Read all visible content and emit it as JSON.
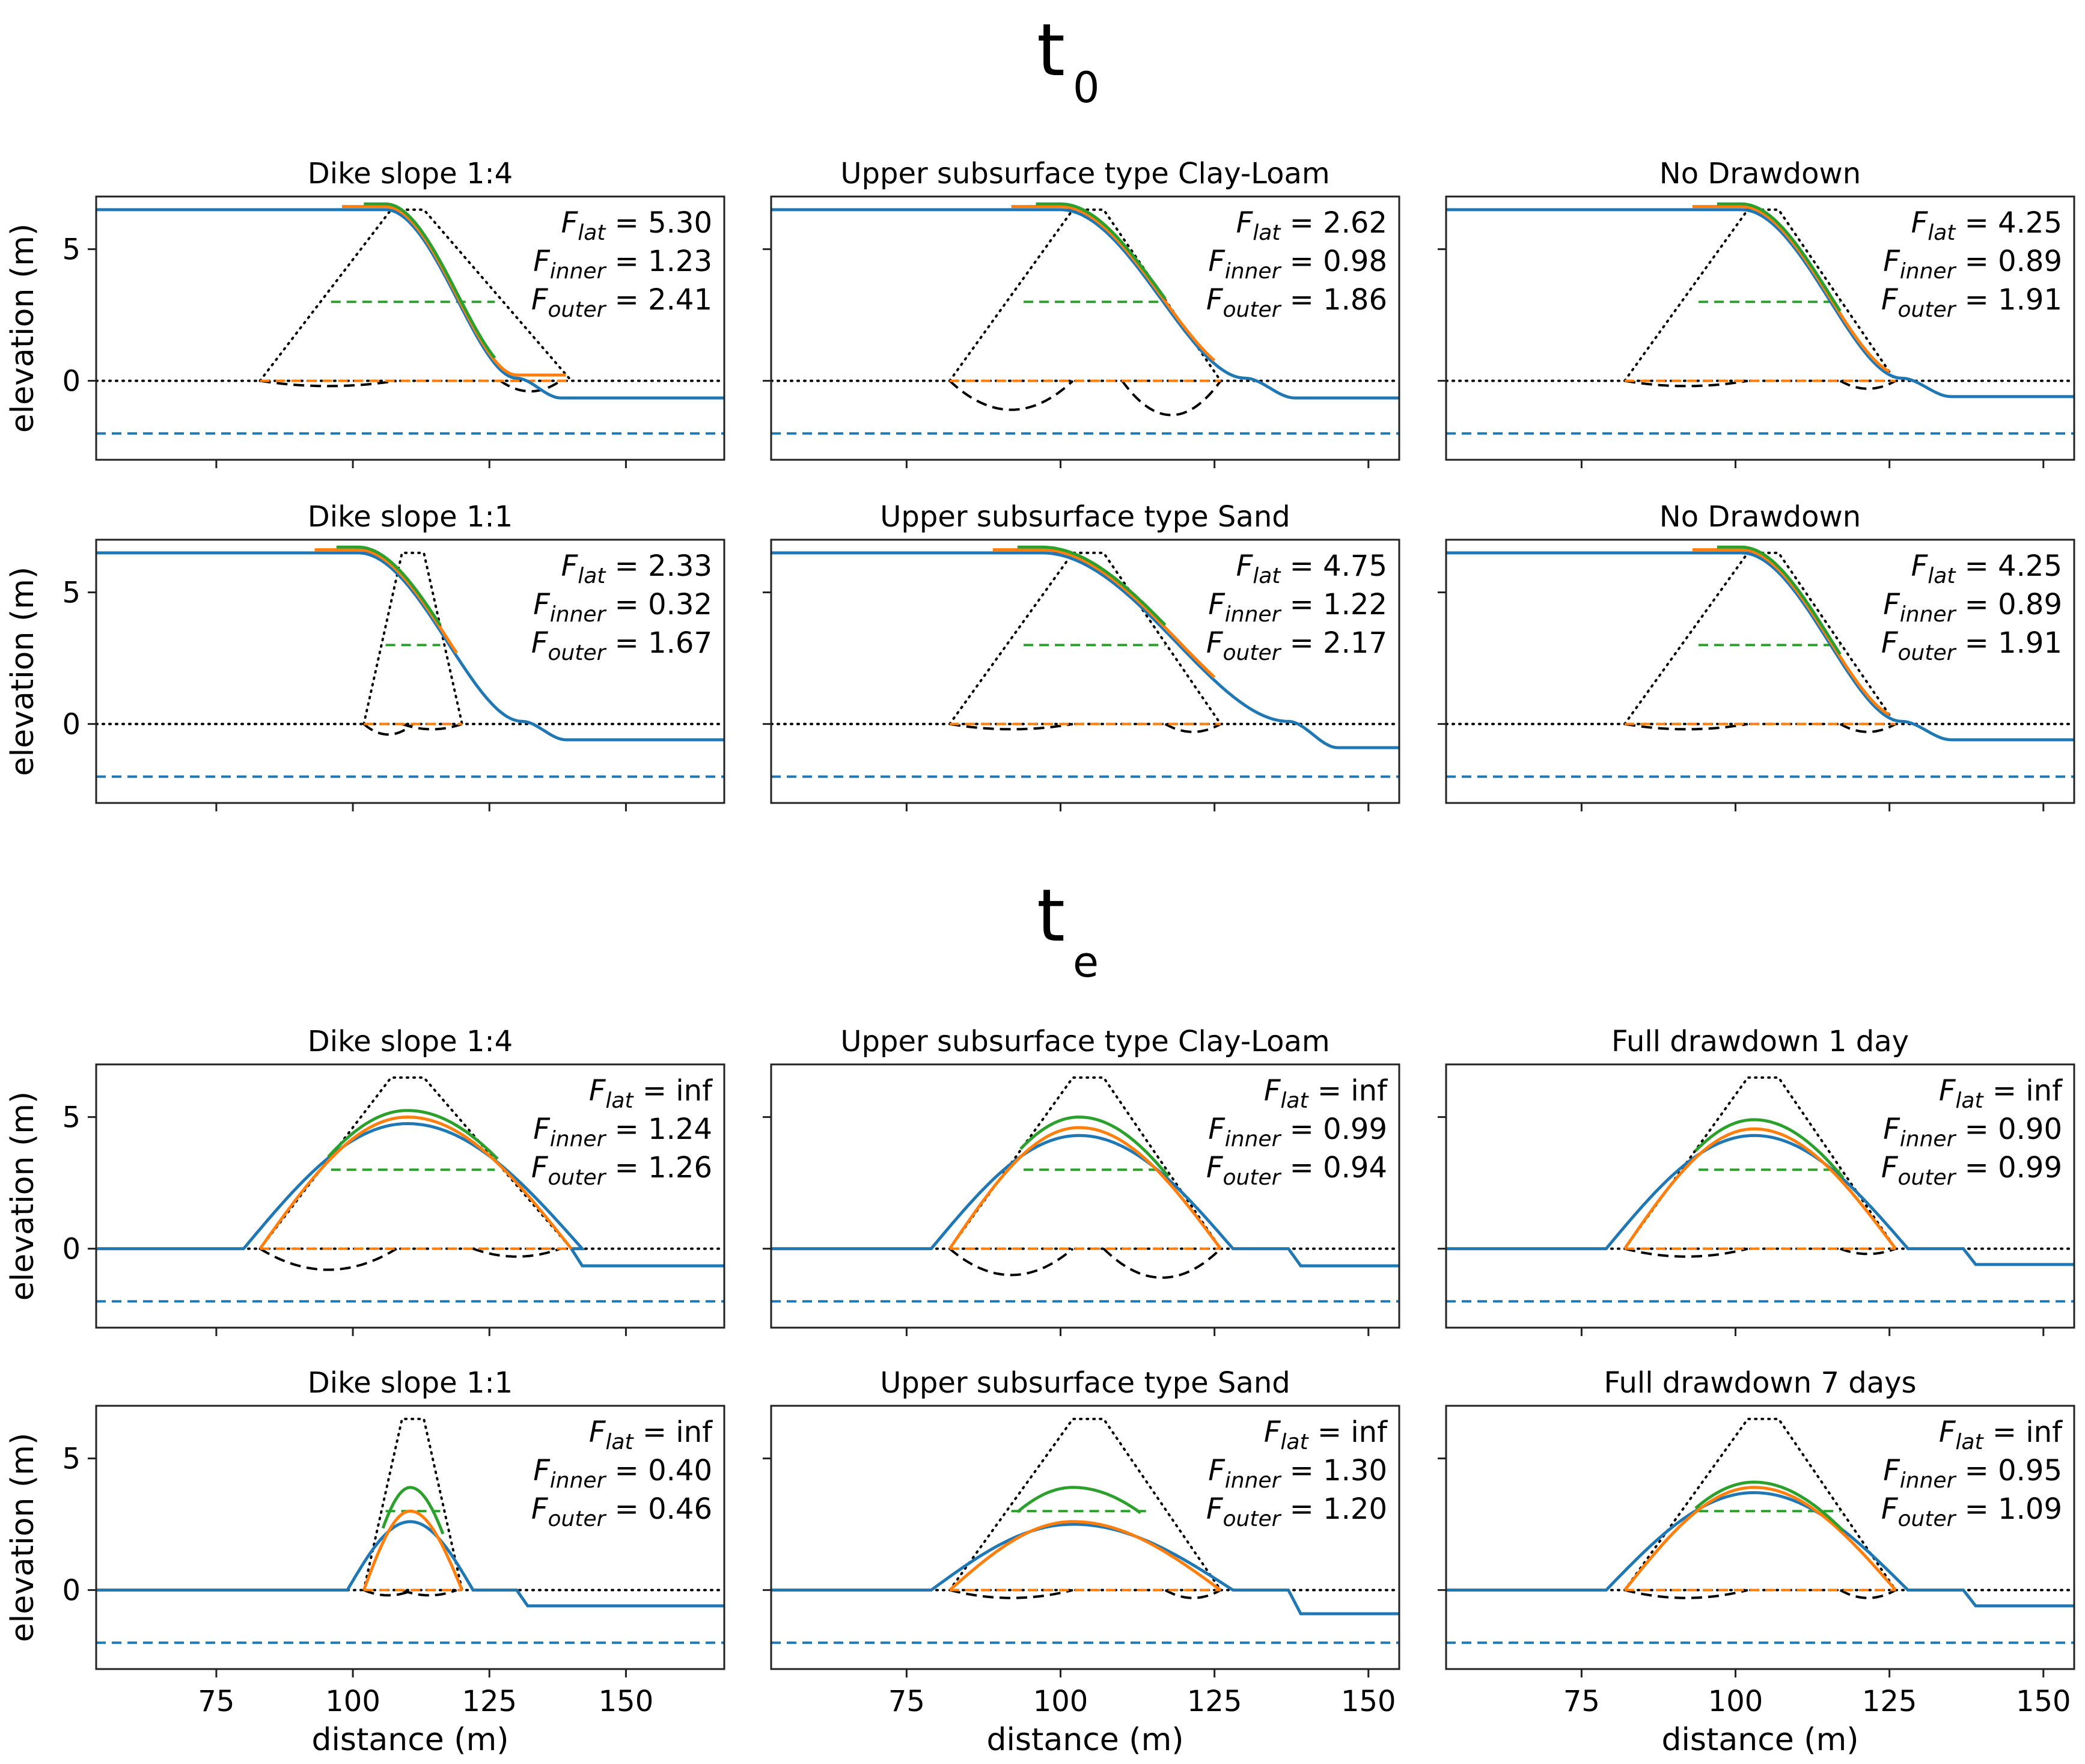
{
  "figure": {
    "section_titles": [
      {
        "main": "t",
        "sub": "0"
      },
      {
        "main": "t",
        "sub": "e"
      }
    ],
    "xlabel": "distance (m)",
    "ylabel": "elevation (m)",
    "colors": {
      "profile": "#1f77b4",
      "orange": "#ff7f0e",
      "green": "#2ca02c",
      "blue_dashed": "#0000ff",
      "black": "#000000"
    }
  },
  "chart_data": [
    {
      "type": "line",
      "section": "t0",
      "title": "Dike slope 1:4",
      "xlim": [
        53,
        168
      ],
      "ylim": [
        -3,
        7
      ],
      "xticks": [
        75,
        100,
        125,
        150
      ],
      "yticks": [
        0,
        5
      ],
      "dike": {
        "x_start": 83,
        "x_end": 140,
        "crest_left": 107,
        "crest_right": 113,
        "height": 6.5
      },
      "circles": {
        "inner": [
          83,
          108,
          -0.2
        ],
        "outer": [
          127,
          138,
          -0.4
        ]
      },
      "green_dash": [
        96,
        126,
        3
      ],
      "orange_dash": [
        83,
        140
      ],
      "plateau_left": 6.5,
      "plateau_end": 106,
      "drop_end": 130,
      "tail_level": -0.65,
      "toe_dash": -2,
      "stats": {
        "F_lat": "5.30",
        "F_inner": "1.23",
        "F_outer": "2.41"
      }
    },
    {
      "type": "line",
      "section": "t0",
      "title": "Upper subsurface type Clay-Loam",
      "xlim": [
        53,
        155
      ],
      "ylim": [
        -3,
        7
      ],
      "xticks": [
        75,
        100,
        125,
        150
      ],
      "yticks": [
        0,
        5
      ],
      "dike": {
        "x_start": 82,
        "x_end": 126,
        "crest_left": 102,
        "crest_right": 107,
        "height": 6.5
      },
      "circles": {
        "inner": [
          82,
          102,
          -1.1
        ],
        "outer": [
          110,
          126,
          -1.3
        ]
      },
      "green_dash": [
        94,
        117,
        3
      ],
      "orange_dash": [
        82,
        126
      ],
      "plateau_left": 6.5,
      "plateau_end": 100,
      "drop_end": 130,
      "tail_level": -0.65,
      "toe_dash": -2,
      "stats": {
        "F_lat": "2.62",
        "F_inner": "0.98",
        "F_outer": "1.86"
      }
    },
    {
      "type": "line",
      "section": "t0",
      "title": "No Drawdown",
      "xlim": [
        53,
        155
      ],
      "ylim": [
        -3,
        7
      ],
      "xticks": [
        75,
        100,
        125,
        150
      ],
      "yticks": [
        0,
        5
      ],
      "dike": {
        "x_start": 82,
        "x_end": 126,
        "crest_left": 102,
        "crest_right": 107,
        "height": 6.5
      },
      "circles": {
        "inner": [
          82,
          102,
          -0.2
        ],
        "outer": [
          117,
          126,
          -0.3
        ]
      },
      "green_dash": [
        94,
        117,
        3
      ],
      "orange_dash": [
        82,
        126
      ],
      "plateau_left": 6.5,
      "plateau_end": 101,
      "drop_end": 127,
      "tail_level": -0.6,
      "toe_dash": -2,
      "stats": {
        "F_lat": "4.25",
        "F_inner": "0.89",
        "F_outer": "1.91"
      }
    },
    {
      "type": "line",
      "section": "t0",
      "title": "Dike slope 1:1",
      "xlim": [
        53,
        168
      ],
      "ylim": [
        -3,
        7
      ],
      "xticks": [
        75,
        100,
        125,
        150
      ],
      "yticks": [
        0,
        5
      ],
      "dike": {
        "x_start": 102,
        "x_end": 120,
        "crest_left": 109,
        "crest_right": 113,
        "height": 6.5
      },
      "circles": {
        "inner": [
          102,
          111,
          -0.4
        ],
        "outer": [
          109,
          120,
          -0.2
        ]
      },
      "green_dash": [
        106,
        116,
        3
      ],
      "orange_dash": [
        102,
        120
      ],
      "plateau_left": 6.5,
      "plateau_end": 101,
      "drop_end": 131,
      "tail_level": -0.6,
      "toe_dash": -2,
      "stats": {
        "F_lat": "2.33",
        "F_inner": "0.32",
        "F_outer": "1.67"
      }
    },
    {
      "type": "line",
      "section": "t0",
      "title": "Upper subsurface type Sand",
      "xlim": [
        53,
        155
      ],
      "ylim": [
        -3,
        7
      ],
      "xticks": [
        75,
        100,
        125,
        150
      ],
      "yticks": [
        0,
        5
      ],
      "dike": {
        "x_start": 82,
        "x_end": 126,
        "crest_left": 102,
        "crest_right": 107,
        "height": 6.5
      },
      "circles": {
        "inner": [
          82,
          102,
          -0.2
        ],
        "outer": [
          117,
          126,
          -0.3
        ]
      },
      "green_dash": [
        94,
        117,
        3
      ],
      "orange_dash": [
        82,
        126
      ],
      "plateau_left": 6.5,
      "plateau_end": 97,
      "drop_end": 137,
      "tail_level": -0.9,
      "toe_dash": -2,
      "stats": {
        "F_lat": "4.75",
        "F_inner": "1.22",
        "F_outer": "2.17"
      }
    },
    {
      "type": "line",
      "section": "t0",
      "title": "No Drawdown",
      "xlim": [
        53,
        155
      ],
      "ylim": [
        -3,
        7
      ],
      "xticks": [
        75,
        100,
        125,
        150
      ],
      "yticks": [
        0,
        5
      ],
      "dike": {
        "x_start": 82,
        "x_end": 126,
        "crest_left": 102,
        "crest_right": 107,
        "height": 6.5
      },
      "circles": {
        "inner": [
          82,
          102,
          -0.2
        ],
        "outer": [
          117,
          126,
          -0.3
        ]
      },
      "green_dash": [
        94,
        117,
        3
      ],
      "orange_dash": [
        82,
        126
      ],
      "plateau_left": 6.5,
      "plateau_end": 101,
      "drop_end": 127,
      "tail_level": -0.6,
      "toe_dash": -2,
      "stats": {
        "F_lat": "4.25",
        "F_inner": "0.89",
        "F_outer": "1.91"
      }
    },
    {
      "type": "line",
      "section": "te",
      "title": "Dike slope 1:4",
      "xlim": [
        53,
        168
      ],
      "ylim": [
        -3,
        7
      ],
      "xticks": [
        75,
        100,
        125,
        150
      ],
      "yticks": [
        0,
        5
      ],
      "dike": {
        "x_start": 83,
        "x_end": 140,
        "crest_left": 107,
        "crest_right": 113,
        "height": 6.5
      },
      "circles": {
        "inner": [
          83,
          108,
          -0.8
        ],
        "outer": [
          122,
          138,
          -0.3
        ]
      },
      "green_dash": [
        96,
        126,
        3
      ],
      "orange_dash": [
        83,
        140
      ],
      "peak_x": 110,
      "peaks": {
        "blue": 4.75,
        "orange": 5.0,
        "green": 5.25
      },
      "base_left": 0,
      "drop_end": 140,
      "tail_level": -0.65,
      "toe_dash": -2,
      "stats": {
        "F_lat": "inf",
        "F_inner": "1.24",
        "F_outer": "1.26"
      }
    },
    {
      "type": "line",
      "section": "te",
      "title": "Upper subsurface type Clay-Loam",
      "xlim": [
        53,
        155
      ],
      "ylim": [
        -3,
        7
      ],
      "xticks": [
        75,
        100,
        125,
        150
      ],
      "yticks": [
        0,
        5
      ],
      "dike": {
        "x_start": 82,
        "x_end": 126,
        "crest_left": 102,
        "crest_right": 107,
        "height": 6.5
      },
      "circles": {
        "inner": [
          82,
          102,
          -1.0
        ],
        "outer": [
          107,
          126,
          -1.1
        ]
      },
      "green_dash": [
        94,
        117,
        3
      ],
      "orange_dash": [
        82,
        126
      ],
      "peak_x": 103,
      "peaks": {
        "blue": 4.3,
        "orange": 4.6,
        "green": 5.0
      },
      "base_left": 0,
      "drop_end": 137,
      "tail_level": -0.65,
      "toe_dash": -2,
      "stats": {
        "F_lat": "inf",
        "F_inner": "0.99",
        "F_outer": "0.94"
      }
    },
    {
      "type": "line",
      "section": "te",
      "title": "Full drawdown 1 day",
      "xlim": [
        53,
        155
      ],
      "ylim": [
        -3,
        7
      ],
      "xticks": [
        75,
        100,
        125,
        150
      ],
      "yticks": [
        0,
        5
      ],
      "dike": {
        "x_start": 82,
        "x_end": 126,
        "crest_left": 102,
        "crest_right": 107,
        "height": 6.5
      },
      "circles": {
        "inner": [
          82,
          102,
          -0.3
        ],
        "outer": [
          117,
          126,
          -0.2
        ]
      },
      "green_dash": [
        94,
        117,
        3
      ],
      "orange_dash": [
        82,
        126
      ],
      "peak_x": 103,
      "peaks": {
        "blue": 4.3,
        "orange": 4.55,
        "green": 4.9
      },
      "base_left": 0,
      "drop_end": 137,
      "tail_level": -0.6,
      "toe_dash": -2,
      "stats": {
        "F_lat": "inf",
        "F_inner": "0.90",
        "F_outer": "0.99"
      }
    },
    {
      "type": "line",
      "section": "te",
      "title": "Dike slope 1:1",
      "xlim": [
        53,
        168
      ],
      "ylim": [
        -3,
        7
      ],
      "xticks": [
        75,
        100,
        125,
        150
      ],
      "yticks": [
        0,
        5
      ],
      "dike": {
        "x_start": 102,
        "x_end": 120,
        "crest_left": 109,
        "crest_right": 113,
        "height": 6.5
      },
      "circles": {
        "inner": [
          102,
          111,
          -0.2
        ],
        "outer": [
          109,
          119,
          -0.2
        ]
      },
      "green_dash": [
        106,
        116,
        3
      ],
      "orange_dash": [
        102,
        120
      ],
      "peak_x": 110.5,
      "peaks": {
        "blue": 2.6,
        "orange": 3.0,
        "green": 3.9
      },
      "base_left": 0,
      "drop_end": 130,
      "tail_level": -0.6,
      "toe_dash": -2,
      "stats": {
        "F_lat": "inf",
        "F_inner": "0.40",
        "F_outer": "0.46"
      }
    },
    {
      "type": "line",
      "section": "te",
      "title": "Upper subsurface type Sand",
      "xlim": [
        53,
        155
      ],
      "ylim": [
        -3,
        7
      ],
      "xticks": [
        75,
        100,
        125,
        150
      ],
      "yticks": [
        0,
        5
      ],
      "dike": {
        "x_start": 82,
        "x_end": 126,
        "crest_left": 102,
        "crest_right": 107,
        "height": 6.5
      },
      "circles": {
        "inner": [
          82,
          102,
          -0.3
        ],
        "outer": [
          117,
          126,
          -0.3
        ]
      },
      "green_dash": [
        92,
        114,
        3
      ],
      "orange_dash": [
        82,
        126
      ],
      "peak_x": 102,
      "peaks": {
        "blue": 2.5,
        "orange": 2.6,
        "green": 3.9
      },
      "green_span": [
        93,
        113
      ],
      "base_left": 0,
      "drop_end": 137,
      "tail_level": -0.9,
      "toe_dash": -2,
      "stats": {
        "F_lat": "inf",
        "F_inner": "1.30",
        "F_outer": "1.20"
      }
    },
    {
      "type": "line",
      "section": "te",
      "title": "Full drawdown 7 days",
      "xlim": [
        53,
        155
      ],
      "ylim": [
        -3,
        7
      ],
      "xticks": [
        75,
        100,
        125,
        150
      ],
      "yticks": [
        0,
        5
      ],
      "dike": {
        "x_start": 82,
        "x_end": 126,
        "crest_left": 102,
        "crest_right": 107,
        "height": 6.5
      },
      "circles": {
        "inner": [
          82,
          102,
          -0.3
        ],
        "outer": [
          117,
          126,
          -0.3
        ]
      },
      "green_dash": [
        94,
        117,
        3
      ],
      "orange_dash": [
        82,
        126
      ],
      "peak_x": 103,
      "peaks": {
        "blue": 3.7,
        "orange": 3.9,
        "green": 4.1
      },
      "base_left": 0,
      "drop_end": 137,
      "tail_level": -0.6,
      "toe_dash": -2,
      "stats": {
        "F_lat": "inf",
        "F_inner": "0.95",
        "F_outer": "1.09"
      }
    }
  ]
}
